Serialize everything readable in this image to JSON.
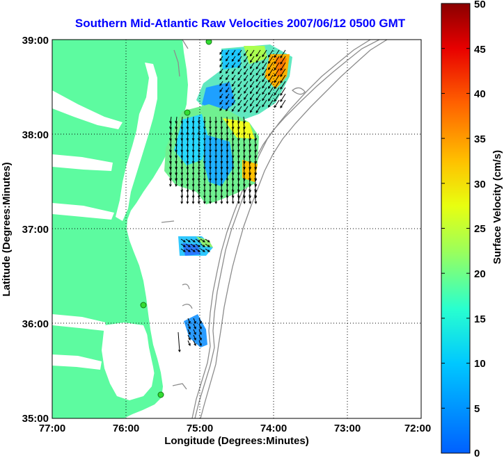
{
  "title": "Southern Mid-Atlantic Raw Velocities 2007/06/12 0500 GMT",
  "x_axis": {
    "label": "Longitude (Degrees:Minutes)",
    "ticks": [
      "77:00",
      "76:00",
      "75:00",
      "74:00",
      "73:00",
      "72:00"
    ]
  },
  "y_axis": {
    "label": "Latitude (Degrees:Minutes)",
    "ticks": [
      "39:00",
      "38:00",
      "37:00",
      "36:00",
      "35:00"
    ]
  },
  "colorbar": {
    "label": "Surface Velocity (cm/s)",
    "ticks": [
      "50",
      "45",
      "40",
      "35",
      "30",
      "25",
      "20",
      "15",
      "10",
      "5",
      "0"
    ],
    "range": [
      0,
      50
    ],
    "colormap": "jet"
  },
  "colors": {
    "title": "#0000ff",
    "land": "#5dfba0",
    "bathymetry": "#8c8c8c",
    "station": "#33dd33"
  },
  "grid": "dotted",
  "map_extent": {
    "lon": [
      -77,
      -72
    ],
    "lat": [
      35,
      39
    ]
  }
}
